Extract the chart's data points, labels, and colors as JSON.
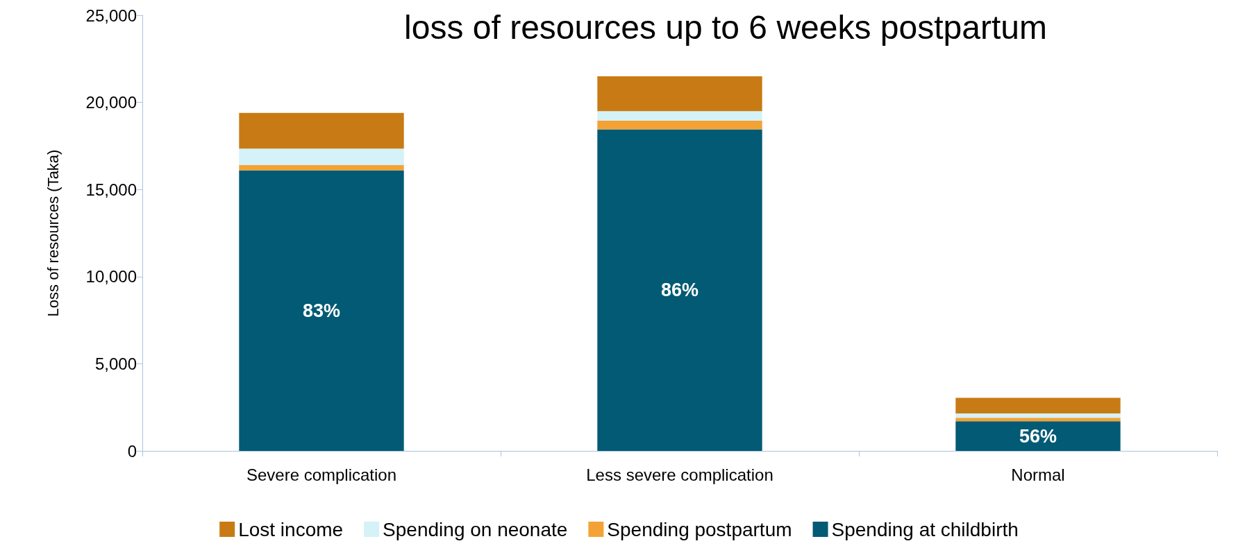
{
  "chart_data": {
    "type": "bar",
    "title": "loss of resources up to 6 weeks postpartum",
    "ylabel": "Loss of resources (Taka)",
    "categories": [
      "Severe complication",
      "Less severe complication",
      "Normal"
    ],
    "stacked": true,
    "series": [
      {
        "name": "Spending at childbirth",
        "color": "#025a74",
        "values": [
          16100,
          18450,
          1700
        ]
      },
      {
        "name": "Spending postpartum",
        "color": "#f4a235",
        "values": [
          300,
          500,
          200
        ]
      },
      {
        "name": "Spending on neonate",
        "color": "#d4f2f7",
        "values": [
          950,
          550,
          250
        ]
      },
      {
        "name": "Lost income",
        "color": "#c87b14",
        "values": [
          2050,
          2000,
          900
        ]
      }
    ],
    "ylim": [
      0,
      25000
    ],
    "yticks": [
      {
        "value": 0,
        "label": "0"
      },
      {
        "value": 5000,
        "label": "5,000"
      },
      {
        "value": 10000,
        "label": "10,000"
      },
      {
        "value": 15000,
        "label": "15,000"
      },
      {
        "value": 20000,
        "label": "20,000"
      },
      {
        "value": 25000,
        "label": "25,000"
      }
    ],
    "grid": false,
    "legend": "bottom",
    "annotations": [
      "83%",
      "86%",
      "56%"
    ]
  }
}
